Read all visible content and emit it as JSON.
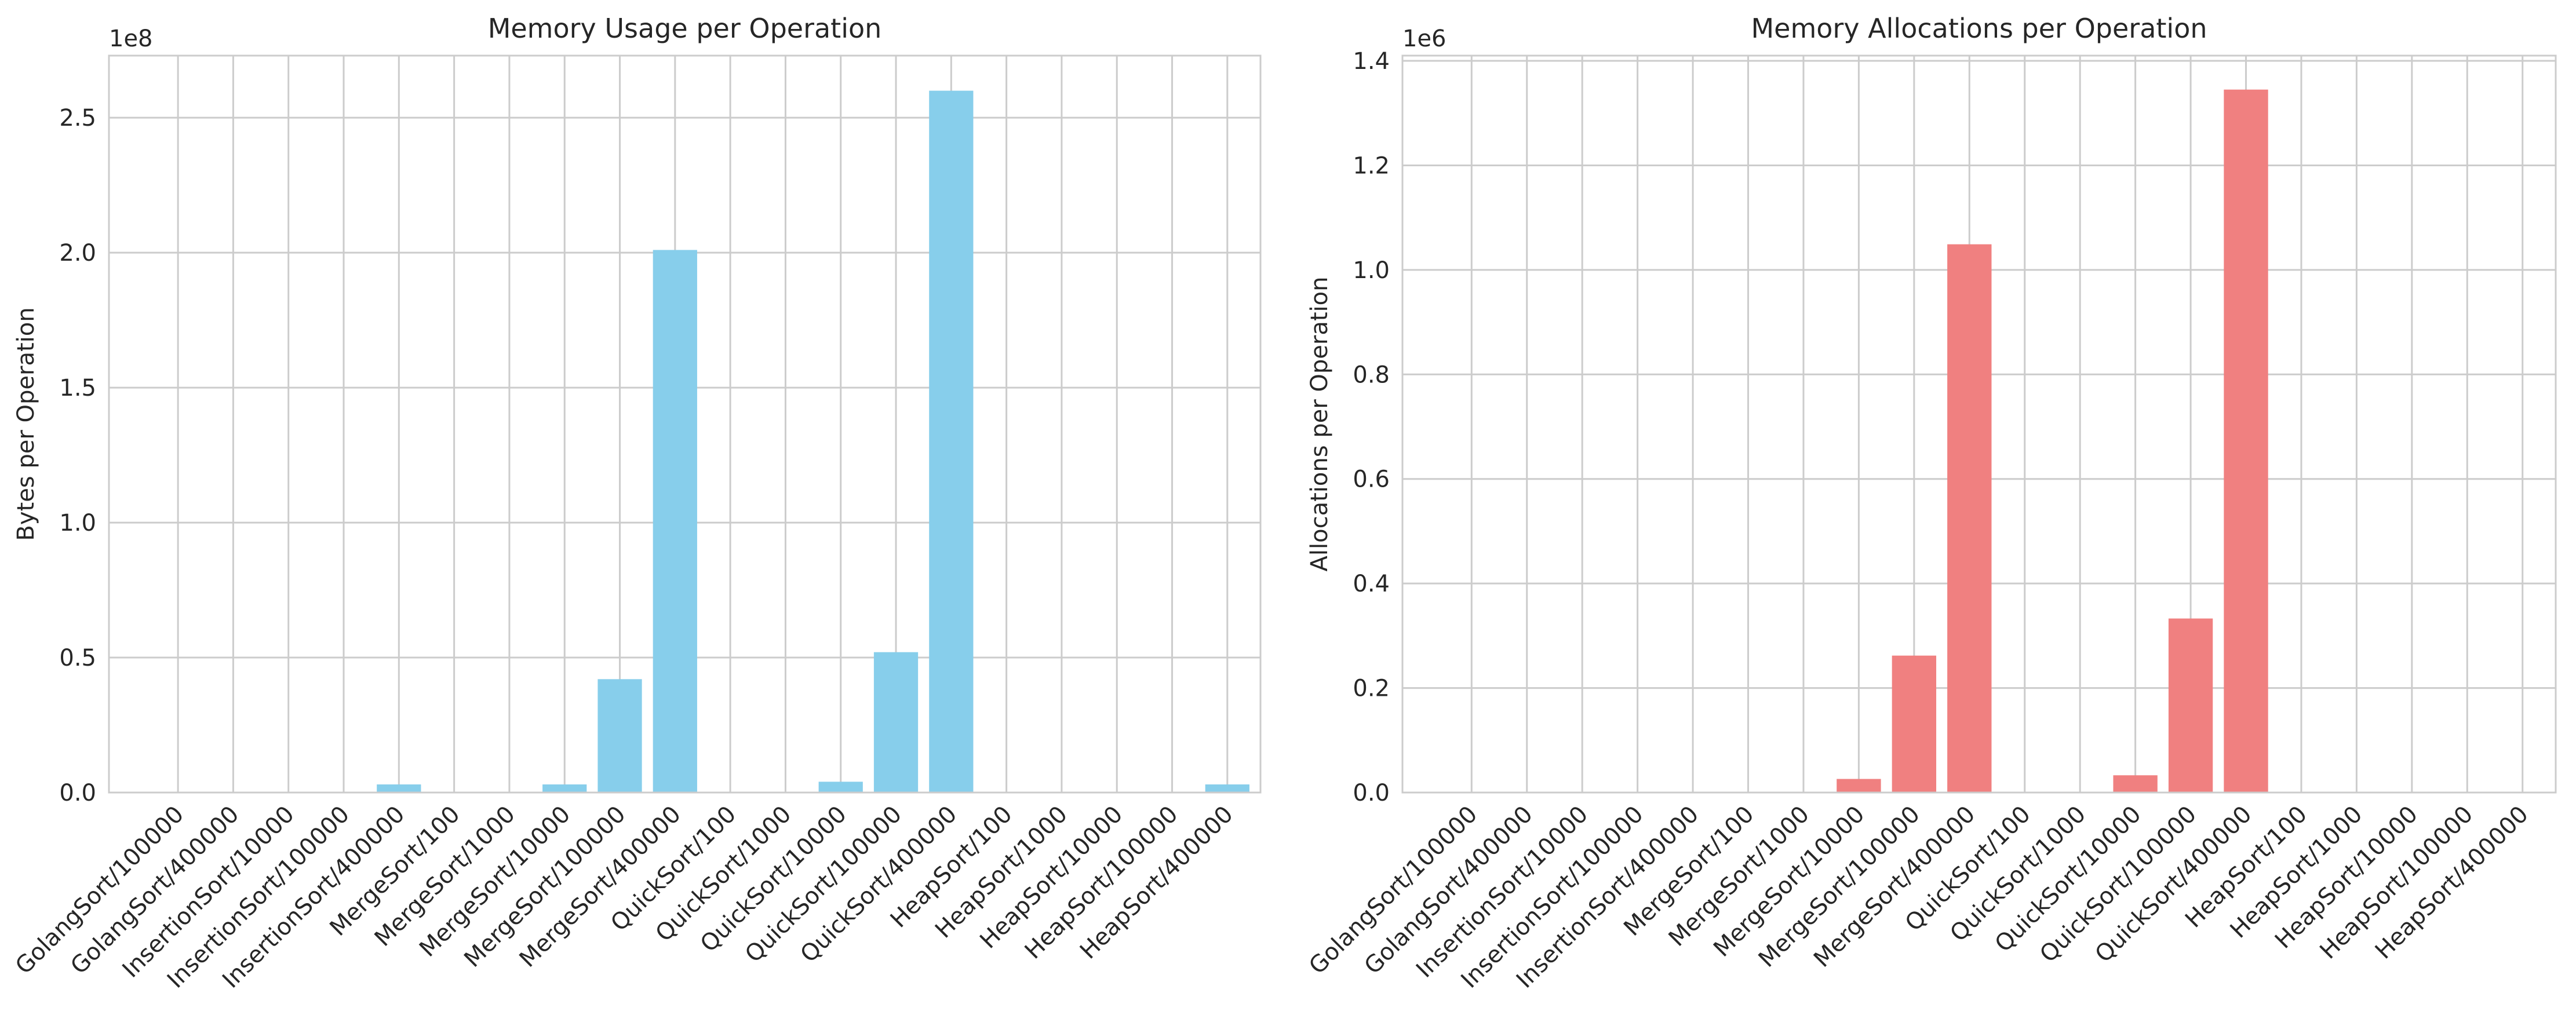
{
  "colors": {
    "usage_bar": "#87ceeb",
    "allocations_bar": "#f08080",
    "grid": "#cccccc",
    "text": "#262626"
  },
  "chart_data": [
    {
      "type": "bar",
      "title": "Memory Usage per Operation",
      "ylabel": "Bytes per Operation",
      "xlabel": "",
      "offset_text": "1e8",
      "scale": 100000000,
      "ylim": [
        0,
        2.73
      ],
      "yticks": [
        0.0,
        0.5,
        1.0,
        1.5,
        2.0,
        2.5
      ],
      "ytick_labels": [
        "0.0",
        "0.5",
        "1.0",
        "1.5",
        "2.0",
        "2.5"
      ],
      "grid": true,
      "categories": [
        "GolangSort/100000",
        "GolangSort/400000",
        "InsertionSort/10000",
        "InsertionSort/100000",
        "InsertionSort/400000",
        "MergeSort/100",
        "MergeSort/1000",
        "MergeSort/10000",
        "MergeSort/100000",
        "MergeSort/400000",
        "QuickSort/100",
        "QuickSort/1000",
        "QuickSort/10000",
        "QuickSort/100000",
        "QuickSort/400000",
        "HeapSort/100",
        "HeapSort/1000",
        "HeapSort/10000",
        "HeapSort/100000",
        "HeapSort/400000"
      ],
      "values": [
        0,
        0,
        0,
        0,
        0.03,
        0,
        0,
        0.03,
        0.42,
        2.01,
        0,
        0,
        0.04,
        0.52,
        2.6,
        0,
        0,
        0,
        0,
        0.03
      ]
    },
    {
      "type": "bar",
      "title": "Memory Allocations per Operation",
      "ylabel": "Allocations per Operation",
      "xlabel": "",
      "offset_text": "1e6",
      "scale": 1000000,
      "ylim": [
        0,
        1.41
      ],
      "yticks": [
        0.0,
        0.2,
        0.4,
        0.6,
        0.8,
        1.0,
        1.2,
        1.4
      ],
      "ytick_labels": [
        "0.0",
        "0.2",
        "0.4",
        "0.6",
        "0.8",
        "1.0",
        "1.2",
        "1.4"
      ],
      "grid": true,
      "categories": [
        "GolangSort/100000",
        "GolangSort/400000",
        "InsertionSort/10000",
        "InsertionSort/100000",
        "InsertionSort/400000",
        "MergeSort/100",
        "MergeSort/1000",
        "MergeSort/10000",
        "MergeSort/100000",
        "MergeSort/400000",
        "QuickSort/100",
        "QuickSort/1000",
        "QuickSort/10000",
        "QuickSort/100000",
        "QuickSort/400000",
        "HeapSort/100",
        "HeapSort/1000",
        "HeapSort/10000",
        "HeapSort/100000",
        "HeapSort/400000"
      ],
      "values": [
        0,
        0,
        0,
        0,
        0,
        0,
        0,
        0.026,
        0.262,
        1.049,
        0,
        0,
        0.033,
        0.333,
        1.345,
        0,
        0,
        0,
        0,
        0
      ]
    }
  ]
}
